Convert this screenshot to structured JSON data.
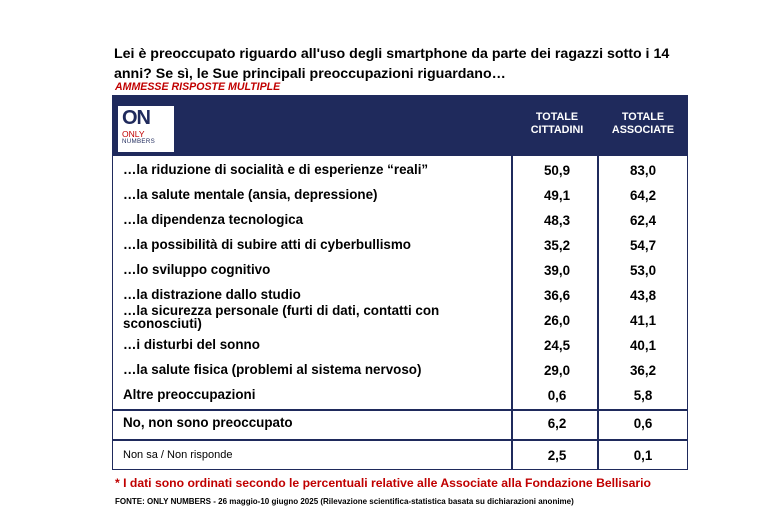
{
  "question": "Lei è preoccupato riguardo all'uso degli smartphone da parte dei ragazzi sotto i 14 anni? Se sì, le Sue principali preoccupazioni riguardano…",
  "subtitle": "AMMESSE RISPOSTE MULTIPLE",
  "logo": {
    "text_on": "ON",
    "text_only": "ONLY",
    "text_numbers": "NUMBERS"
  },
  "colors": {
    "header_bg": "#1f2a5c",
    "accent_red": "#c00000"
  },
  "chart_data": {
    "type": "table",
    "columns": [
      "TOTALE CITTADINI",
      "TOTALE ASSOCIATE"
    ],
    "rows": [
      {
        "label": "…la riduzione di socialità e di esperienze “reali”",
        "values": [
          "50,9",
          "83,0"
        ]
      },
      {
        "label": "…la salute mentale (ansia, depressione)",
        "values": [
          "49,1",
          "64,2"
        ]
      },
      {
        "label": "…la dipendenza tecnologica",
        "values": [
          "48,3",
          "62,4"
        ]
      },
      {
        "label": "…la possibilità di subire atti di cyberbullismo",
        "values": [
          "35,2",
          "54,7"
        ]
      },
      {
        "label": "…lo sviluppo cognitivo",
        "values": [
          "39,0",
          "53,0"
        ]
      },
      {
        "label": "…la distrazione dallo studio",
        "values": [
          "36,6",
          "43,8"
        ]
      },
      {
        "label": "…la sicurezza personale (furti di dati, contatti con sconosciuti)",
        "values": [
          "26,0",
          "41,1"
        ]
      },
      {
        "label": "…i disturbi del sonno",
        "values": [
          "24,5",
          "40,1"
        ]
      },
      {
        "label": "…la salute fisica (problemi al sistema nervoso)",
        "values": [
          "29,0",
          "36,2"
        ]
      },
      {
        "label": "Altre preoccupazioni",
        "values": [
          "0,6",
          "5,8"
        ]
      },
      {
        "label": "No, non sono preoccupato",
        "values": [
          "6,2",
          "0,6"
        ]
      },
      {
        "label": "Non sa / Non risponde",
        "values": [
          "2,5",
          "0,1"
        ]
      }
    ]
  },
  "footnote": "* I dati sono ordinati secondo le percentuali relative alle Associate alla Fondazione Bellisario",
  "source": "FONTE: ONLY NUMBERS - 26 maggio-10 giugno 2025 (Rilevazione scientifica-statistica basata su dichiarazioni anonime)"
}
